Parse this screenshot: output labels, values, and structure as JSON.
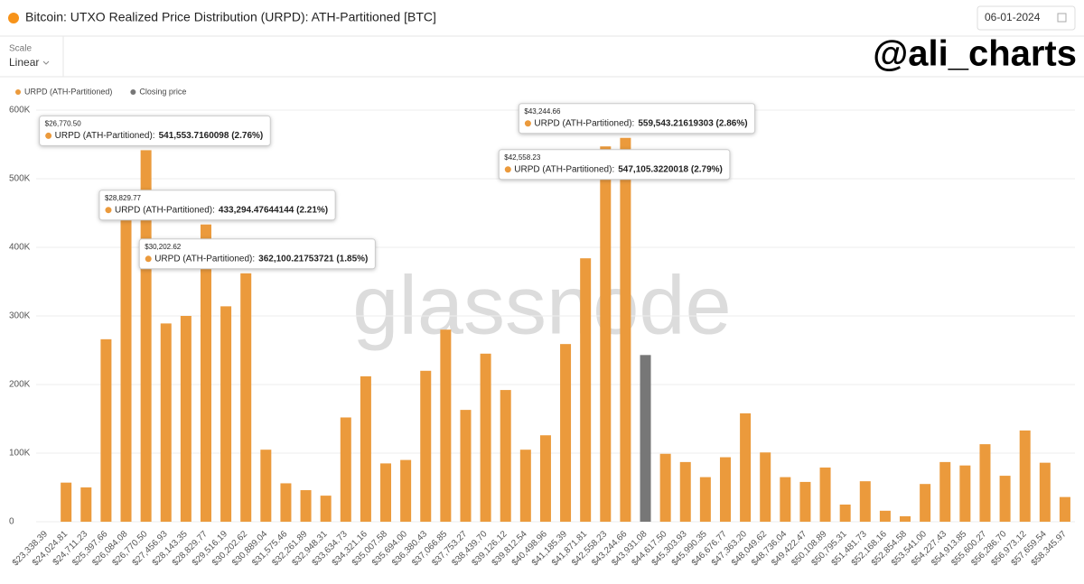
{
  "header": {
    "title": "Bitcoin: UTXO Realized Price Distribution (URPD): ATH-Partitioned [BTC]",
    "date": "06-01-2024"
  },
  "controls": {
    "scale_label": "Scale",
    "scale_value": "Linear"
  },
  "watermark": "glassnode",
  "credit": "@ali_charts",
  "chart_data": {
    "type": "bar",
    "categories": [
      "$23,338.39",
      "$24,024.81",
      "$24,711.23",
      "$25,397.66",
      "$26,084.08",
      "$26,770.50",
      "$27,456.93",
      "$28,143.35",
      "$28,829.77",
      "$29,516.19",
      "$30,202.62",
      "$30,889.04",
      "$31,575.46",
      "$32,261.89",
      "$32,948.31",
      "$33,634.73",
      "$34,321.16",
      "$35,007.58",
      "$35,694.00",
      "$36,380.43",
      "$37,066.85",
      "$37,753.27",
      "$38,439.70",
      "$39,126.12",
      "$39,812.54",
      "$40,498.96",
      "$41,185.39",
      "$41,871.81",
      "$42,558.23",
      "$43,244.66",
      "$43,931.08",
      "$44,617.50",
      "$45,303.93",
      "$45,990.35",
      "$46,676.77",
      "$47,363.20",
      "$48,049.62",
      "$48,736.04",
      "$49,422.47",
      "$50,108.89",
      "$50,795.31",
      "$51,481.73",
      "$52,168.16",
      "$52,854.58",
      "$53,541.00",
      "$54,227.43",
      "$54,913.85",
      "$55,600.27",
      "$56,286.70",
      "$56,973.12",
      "$57,659.54",
      "$58,345.97"
    ],
    "series": [
      {
        "name": "URPD (ATH-Partitioned)",
        "color": "#eb9a3c",
        "values": [
          0,
          57000,
          50000,
          266000,
          450000,
          541553.7160098,
          289000,
          300000,
          433294.47644144,
          314000,
          362100.21753721,
          105000,
          56000,
          46000,
          38000,
          152000,
          212000,
          85000,
          90000,
          220000,
          280000,
          163000,
          245000,
          192000,
          105000,
          126000,
          259000,
          384000,
          547105.3220018,
          559543.21619303,
          null,
          99000,
          87000,
          65000,
          94000,
          158000,
          101000,
          65000,
          58000,
          79000,
          25000,
          59000,
          16000,
          8000,
          55000,
          87000,
          82000,
          113000,
          67000,
          133000,
          86000,
          36000
        ],
        "value_labels": [
          null,
          null,
          null,
          null,
          null,
          "541,553.7160098 (2.76%)",
          null,
          null,
          "433,294.47644144 (2.21%)",
          null,
          "362,100.21753721 (1.85%)",
          null,
          null,
          null,
          null,
          null,
          null,
          null,
          null,
          null,
          null,
          null,
          null,
          null,
          null,
          null,
          null,
          null,
          "547,105.3220018 (2.79%)",
          "559,543.21619303 (2.86%)",
          null,
          null,
          null,
          null,
          null,
          null,
          null,
          null,
          null,
          null,
          null,
          null,
          null,
          null,
          null,
          null,
          null,
          null,
          null,
          null,
          null,
          null
        ]
      },
      {
        "name": "Closing price",
        "color": "#777777",
        "values": [
          null,
          null,
          null,
          null,
          null,
          null,
          null,
          null,
          null,
          null,
          null,
          null,
          null,
          null,
          null,
          null,
          null,
          null,
          null,
          null,
          null,
          null,
          null,
          null,
          null,
          null,
          null,
          null,
          null,
          null,
          243000,
          null,
          null,
          null,
          null,
          null,
          null,
          null,
          null,
          null,
          null,
          null,
          null,
          null,
          null,
          null,
          null,
          null,
          null,
          null,
          null,
          null
        ]
      }
    ],
    "tooltip_label": "URPD (ATH-Partitioned):",
    "ylim": [
      0,
      600000
    ],
    "yticks": [
      0,
      {
        "value": 100000,
        "label": "100K"
      },
      {
        "value": 200000,
        "label": "200K"
      },
      {
        "value": 300000,
        "label": "300K"
      },
      {
        "value": 400000,
        "label": "400K"
      },
      {
        "value": 500000,
        "label": "500K"
      },
      {
        "value": 600000,
        "label": "600K"
      }
    ],
    "grid": true,
    "legend": "top-left"
  }
}
